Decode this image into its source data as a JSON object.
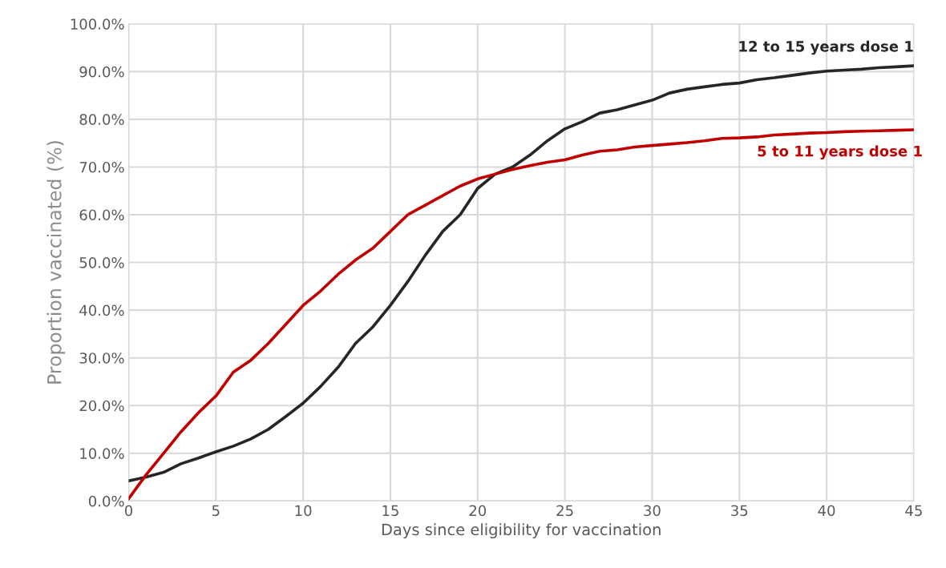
{
  "chart_data": {
    "type": "line",
    "xlabel": "Days since eligibility for vaccination",
    "ylabel": "Proportion vaccinated (%)",
    "x": [
      0,
      1,
      2,
      3,
      4,
      5,
      6,
      7,
      8,
      9,
      10,
      11,
      12,
      13,
      14,
      15,
      16,
      17,
      18,
      19,
      20,
      21,
      22,
      23,
      24,
      25,
      26,
      27,
      28,
      29,
      30,
      31,
      32,
      33,
      34,
      35,
      36,
      37,
      38,
      39,
      40,
      41,
      42,
      43,
      44,
      45
    ],
    "series": [
      {
        "name": "12 to 15 years dose 1",
        "color": "#262626",
        "values": [
          4.2,
          5,
          6,
          7.8,
          9,
          10.3,
          11.5,
          13,
          15,
          17.7,
          20.5,
          24,
          28,
          33,
          36.5,
          41,
          46,
          51.5,
          56.5,
          60,
          65.5,
          68.5,
          70,
          72.5,
          75.5,
          78,
          79.5,
          81.3,
          82,
          83,
          84,
          85.5,
          86.3,
          86.8,
          87.3,
          87.6,
          88.3,
          88.7,
          89.2,
          89.7,
          90.1,
          90.3,
          90.5,
          90.8,
          91,
          91.2
        ]
      },
      {
        "name": "5 to 11 years dose 1",
        "color": "#c00000",
        "values": [
          0.5,
          5.5,
          10,
          14.5,
          18.5,
          22,
          27,
          29.5,
          33,
          37,
          41,
          44,
          47.5,
          50.5,
          53,
          56.5,
          60,
          62,
          64,
          66,
          67.5,
          68.5,
          69.5,
          70.3,
          71,
          71.5,
          72.5,
          73.3,
          73.6,
          74.2,
          74.5,
          74.8,
          75.1,
          75.5,
          76,
          76.1,
          76.3,
          76.7,
          76.9,
          77.1,
          77.2,
          77.4,
          77.5,
          77.6,
          77.7,
          77.8
        ]
      }
    ],
    "xlim": [
      0,
      45
    ],
    "xticks": [
      0,
      5,
      10,
      15,
      20,
      25,
      30,
      35,
      40,
      45
    ],
    "ylim": [
      0,
      100
    ],
    "yticks": [
      {
        "value": 0,
        "label": "0.0%"
      },
      {
        "value": 10,
        "label": "10.0%"
      },
      {
        "value": 20,
        "label": "20.0%"
      },
      {
        "value": 30,
        "label": "30.0%"
      },
      {
        "value": 40,
        "label": "40.0%"
      },
      {
        "value": 50,
        "label": "50.0%"
      },
      {
        "value": 60,
        "label": "60.0%"
      },
      {
        "value": 70,
        "label": "70.0%"
      },
      {
        "value": 80,
        "label": "80.0%"
      },
      {
        "value": 90,
        "label": "90.0%"
      },
      {
        "value": 100,
        "label": "100.0%"
      }
    ],
    "grid": true,
    "legend": false,
    "marker": "none",
    "line_style": "solid"
  }
}
